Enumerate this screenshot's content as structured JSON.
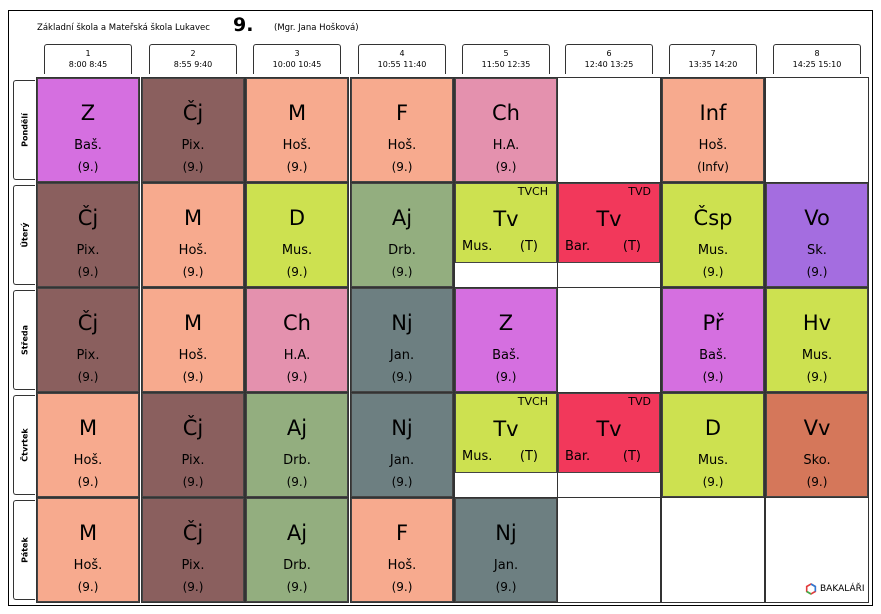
{
  "header": {
    "school": "Základní škola a Mateřská škola Lukavec",
    "class_name": "9.",
    "teacher": "(Mgr. Jana Hošková)"
  },
  "periods": [
    {
      "num": "1",
      "time": "8:00 8:45"
    },
    {
      "num": "2",
      "time": "8:55 9:40"
    },
    {
      "num": "3",
      "time": "10:00 10:45"
    },
    {
      "num": "4",
      "time": "10:55 11:40"
    },
    {
      "num": "5",
      "time": "11:50 12:35"
    },
    {
      "num": "6",
      "time": "12:40 13:25"
    },
    {
      "num": "7",
      "time": "13:35 14:20"
    },
    {
      "num": "8",
      "time": "14:25 15:10"
    }
  ],
  "days": [
    "Pondělí",
    "Úterý",
    "Středa",
    "Čtvrtek",
    "Pátek"
  ],
  "lessons": [
    [
      {
        "subject": "Z",
        "teacher": "Baš.",
        "room": "(9.)",
        "color": "#d56fe0"
      },
      {
        "subject": "Čj",
        "teacher": "Pix.",
        "room": "(9.)",
        "color": "#8a5f5e"
      },
      {
        "subject": "M",
        "teacher": "Hoš.",
        "room": "(9.)",
        "color": "#f7aa8e"
      },
      {
        "subject": "F",
        "teacher": "Hoš.",
        "room": "(9.)",
        "color": "#f7aa8e"
      },
      {
        "subject": "Ch",
        "teacher": "H.A.",
        "room": "(9.)",
        "color": "#e491ae"
      },
      null,
      {
        "subject": "Inf",
        "teacher": "Hoš.",
        "room": "(Infv)",
        "color": "#f7aa8e"
      },
      null
    ],
    [
      {
        "subject": "Čj",
        "teacher": "Pix.",
        "room": "(9.)",
        "color": "#8a5f5e"
      },
      {
        "subject": "M",
        "teacher": "Hoš.",
        "room": "(9.)",
        "color": "#f7aa8e"
      },
      {
        "subject": "D",
        "teacher": "Mus.",
        "room": "(9.)",
        "color": "#cde150"
      },
      {
        "subject": "Aj",
        "teacher": "Drb.",
        "room": "(9.)",
        "color": "#93ae7f"
      },
      {
        "subject": "Tv",
        "group": "TVCH",
        "teacher": "Mus.",
        "room": "(T)",
        "color": "#cde150",
        "half": true
      },
      {
        "subject": "Tv",
        "group": "TVD",
        "teacher": "Bar.",
        "room": "(T)",
        "color": "#f2385b",
        "half": true
      },
      {
        "subject": "Čsp",
        "teacher": "Mus.",
        "room": "(9.)",
        "color": "#cde150"
      },
      {
        "subject": "Vo",
        "teacher": "Sk.",
        "room": "(9.)",
        "color": "#a46de0"
      }
    ],
    [
      {
        "subject": "Čj",
        "teacher": "Pix.",
        "room": "(9.)",
        "color": "#8a5f5e"
      },
      {
        "subject": "M",
        "teacher": "Hoš.",
        "room": "(9.)",
        "color": "#f7aa8e"
      },
      {
        "subject": "Ch",
        "teacher": "H.A.",
        "room": "(9.)",
        "color": "#e491ae"
      },
      {
        "subject": "Nj",
        "teacher": "Jan.",
        "room": "(9.)",
        "color": "#6d7f81"
      },
      {
        "subject": "Z",
        "teacher": "Baš.",
        "room": "(9.)",
        "color": "#d56fe0"
      },
      null,
      {
        "subject": "Př",
        "teacher": "Baš.",
        "room": "(9.)",
        "color": "#d56fe0"
      },
      {
        "subject": "Hv",
        "teacher": "Mus.",
        "room": "(9.)",
        "color": "#cde150"
      }
    ],
    [
      {
        "subject": "M",
        "teacher": "Hoš.",
        "room": "(9.)",
        "color": "#f7aa8e"
      },
      {
        "subject": "Čj",
        "teacher": "Pix.",
        "room": "(9.)",
        "color": "#8a5f5e"
      },
      {
        "subject": "Aj",
        "teacher": "Drb.",
        "room": "(9.)",
        "color": "#93ae7f"
      },
      {
        "subject": "Nj",
        "teacher": "Jan.",
        "room": "(9.)",
        "color": "#6d7f81"
      },
      {
        "subject": "Tv",
        "group": "TVCH",
        "teacher": "Mus.",
        "room": "(T)",
        "color": "#cde150",
        "half": true
      },
      {
        "subject": "Tv",
        "group": "TVD",
        "teacher": "Bar.",
        "room": "(T)",
        "color": "#f2385b",
        "half": true
      },
      {
        "subject": "D",
        "teacher": "Mus.",
        "room": "(9.)",
        "color": "#cde150"
      },
      {
        "subject": "Vv",
        "teacher": "Sko.",
        "room": "(9.)",
        "color": "#d5775a"
      }
    ],
    [
      {
        "subject": "M",
        "teacher": "Hoš.",
        "room": "(9.)",
        "color": "#f7aa8e"
      },
      {
        "subject": "Čj",
        "teacher": "Pix.",
        "room": "(9.)",
        "color": "#8a5f5e"
      },
      {
        "subject": "Aj",
        "teacher": "Drb.",
        "room": "(9.)",
        "color": "#93ae7f"
      },
      {
        "subject": "F",
        "teacher": "Hoš.",
        "room": "(9.)",
        "color": "#f7aa8e"
      },
      {
        "subject": "Nj",
        "teacher": "Jan.",
        "room": "(9.)",
        "color": "#6d7f81"
      },
      null,
      null,
      null
    ]
  ],
  "logo": {
    "text": "BAKALÁŘI",
    "icon": "bakalari-logo-icon"
  }
}
